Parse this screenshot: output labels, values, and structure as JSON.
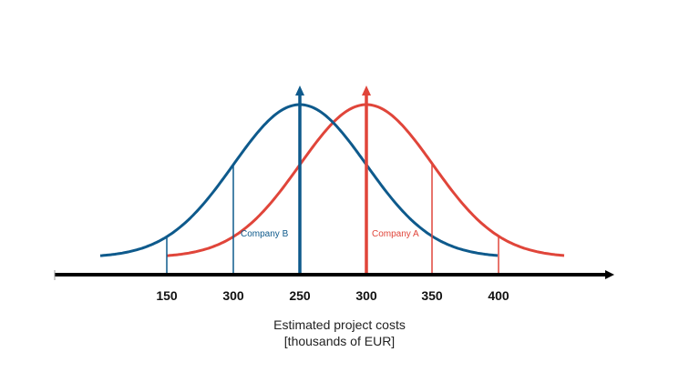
{
  "chart_data": {
    "type": "line",
    "xlabel_line1": "Estimated project costs",
    "xlabel_line2": "[thousands of EUR]",
    "tick_labels": [
      "150",
      "300",
      "250",
      "300",
      "350",
      "400"
    ],
    "series": [
      {
        "name": "Company B",
        "color": "#0e5a8c",
        "mean_label": "250",
        "interval_labels": [
          "150",
          "300"
        ],
        "curve_from_label": "150"
      },
      {
        "name": "Company A",
        "color": "#e0453a",
        "mean_label": "300",
        "interval_labels": [
          "350",
          "400"
        ],
        "curve_to_label": "400"
      }
    ]
  }
}
